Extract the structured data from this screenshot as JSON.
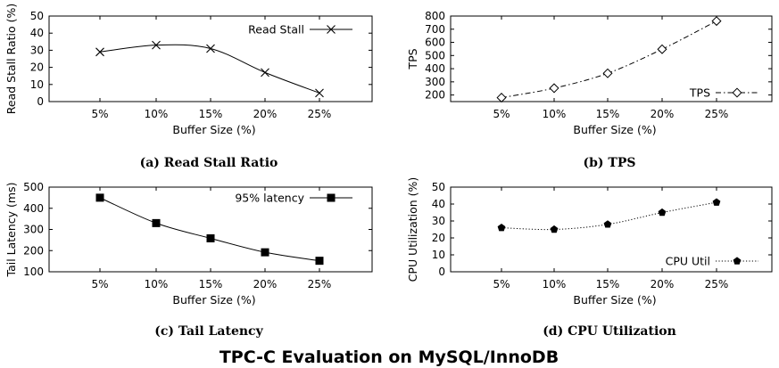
{
  "title": "TPC-C Evaluation on MySQL/InnoDB",
  "chart_data": [
    {
      "type": "line",
      "caption": "(a) Read Stall Ratio",
      "categories": [
        "5%",
        "10%",
        "15%",
        "20%",
        "25%"
      ],
      "series": [
        {
          "name": "Read Stall",
          "values": [
            29,
            33,
            31,
            17,
            5
          ],
          "marker": "x",
          "line": "solid"
        }
      ],
      "xlabel": "Buffer Size (%)",
      "ylabel": "Read Stall Ratio (%)",
      "ylim": [
        0,
        50
      ],
      "yticks": [
        0,
        10,
        20,
        30,
        40,
        50
      ],
      "legend": "top-right"
    },
    {
      "type": "line",
      "caption": "(b) TPS",
      "categories": [
        "5%",
        "10%",
        "15%",
        "20%",
        "25%"
      ],
      "series": [
        {
          "name": "TPS",
          "values": [
            180,
            252,
            365,
            548,
            762
          ],
          "marker": "diamond-open",
          "line": "dashdot"
        }
      ],
      "xlabel": "Buffer Size (%)",
      "ylabel": "TPS",
      "ylim": [
        150,
        800
      ],
      "yticks": [
        200,
        300,
        400,
        500,
        600,
        700,
        800
      ],
      "legend": "bottom-right"
    },
    {
      "type": "line",
      "caption": "(c) Tail Latency",
      "categories": [
        "5%",
        "10%",
        "15%",
        "20%",
        "25%"
      ],
      "series": [
        {
          "name": "95% latency",
          "values": [
            450,
            330,
            258,
            192,
            152
          ],
          "marker": "square-filled",
          "line": "solid"
        }
      ],
      "xlabel": "Buffer Size (%)",
      "ylabel": "Tail Latency (ms)",
      "ylim": [
        100,
        500
      ],
      "yticks": [
        100,
        200,
        300,
        400,
        500
      ],
      "legend": "top-right"
    },
    {
      "type": "line",
      "caption": "(d) CPU Utilization",
      "categories": [
        "5%",
        "10%",
        "15%",
        "20%",
        "25%"
      ],
      "series": [
        {
          "name": "CPU Util",
          "values": [
            26,
            25,
            28,
            35,
            41
          ],
          "marker": "pentagon-filled",
          "line": "dotted"
        }
      ],
      "xlabel": "Buffer Size (%)",
      "ylabel": "CPU Utilization (%)",
      "ylim": [
        0,
        50
      ],
      "yticks": [
        0,
        10,
        20,
        30,
        40,
        50
      ],
      "legend": "bottom-right"
    }
  ]
}
